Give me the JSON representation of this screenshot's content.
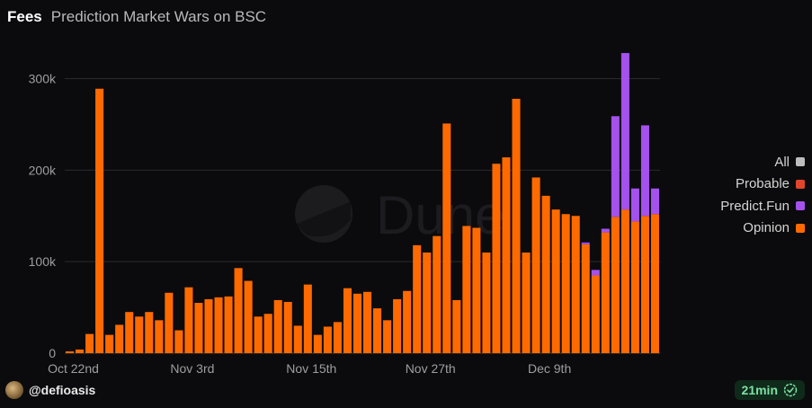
{
  "header": {
    "title": "Fees",
    "subtitle": "Prediction Market Wars on BSC"
  },
  "watermark": {
    "text": "Dune"
  },
  "colors": {
    "background": "#0b0b0d",
    "opinion": "#ff6a00",
    "predict_fun": "#a451ee",
    "probable": "#e2452c",
    "all": "#bdbdbd",
    "grid": "#2a2a2e",
    "axis_text": "#9e9e9e"
  },
  "legend": {
    "items": [
      {
        "label": "All",
        "color": "#bdbdbd"
      },
      {
        "label": "Probable",
        "color": "#e2452c"
      },
      {
        "label": "Predict.Fun",
        "color": "#a451ee"
      },
      {
        "label": "Opinion",
        "color": "#ff6a00"
      }
    ]
  },
  "chart_data": {
    "type": "bar",
    "stacked": true,
    "title": "Fees",
    "subtitle": "Prediction Market Wars on BSC",
    "xlabel": "",
    "ylabel": "",
    "ylim": [
      0,
      330000
    ],
    "yticks": [
      0,
      100000,
      200000,
      300000
    ],
    "ytick_labels": [
      "0",
      "100k",
      "200k",
      "300k"
    ],
    "xtick_labels": [
      {
        "label": "Oct 22nd",
        "index": 0
      },
      {
        "label": "Nov 3rd",
        "index": 12
      },
      {
        "label": "Nov 15th",
        "index": 24
      },
      {
        "label": "Nov 27th",
        "index": 36
      },
      {
        "label": "Dec 9th",
        "index": 48
      }
    ],
    "grid": true,
    "legend_position": "right",
    "series": [
      {
        "name": "Opinion",
        "values": [
          2000,
          4000,
          21000,
          289000,
          20000,
          31000,
          45000,
          40000,
          45000,
          36000,
          66000,
          25000,
          72000,
          55000,
          59000,
          61000,
          62000,
          93000,
          79000,
          40000,
          43000,
          58000,
          56000,
          30000,
          75000,
          20000,
          29000,
          34000,
          71000,
          65000,
          67000,
          49000,
          36000,
          59000,
          68000,
          118000,
          110000,
          128000,
          251000,
          58000,
          139000,
          137000,
          110000,
          207000,
          214000,
          278000,
          110000,
          192000,
          172000,
          157000,
          152000,
          150000,
          119000,
          85000,
          132000,
          149000,
          157000,
          144000,
          150000,
          152000
        ]
      },
      {
        "name": "Predict.Fun",
        "values": [
          0,
          0,
          0,
          0,
          0,
          0,
          0,
          0,
          0,
          0,
          0,
          0,
          0,
          0,
          0,
          0,
          0,
          0,
          0,
          0,
          0,
          0,
          0,
          0,
          0,
          0,
          0,
          0,
          0,
          0,
          0,
          0,
          0,
          0,
          0,
          0,
          0,
          0,
          0,
          0,
          0,
          0,
          0,
          0,
          0,
          0,
          0,
          0,
          0,
          0,
          0,
          0,
          2000,
          6000,
          4000,
          110000,
          171000,
          36000,
          99000,
          28000
        ]
      },
      {
        "name": "Probable",
        "values": [
          0,
          0,
          0,
          0,
          0,
          0,
          0,
          0,
          0,
          0,
          0,
          0,
          0,
          0,
          0,
          0,
          0,
          0,
          0,
          0,
          0,
          0,
          0,
          0,
          0,
          0,
          0,
          0,
          0,
          0,
          0,
          0,
          0,
          0,
          0,
          0,
          0,
          0,
          0,
          0,
          0,
          0,
          0,
          0,
          0,
          0,
          0,
          0,
          0,
          0,
          0,
          0,
          0,
          0,
          0,
          0,
          0,
          0,
          0,
          0
        ]
      },
      {
        "name": "All",
        "values": [
          0,
          0,
          0,
          0,
          0,
          0,
          0,
          0,
          0,
          0,
          0,
          0,
          0,
          0,
          0,
          0,
          0,
          0,
          0,
          0,
          0,
          0,
          0,
          0,
          0,
          0,
          0,
          0,
          0,
          0,
          0,
          0,
          0,
          0,
          0,
          0,
          0,
          0,
          0,
          0,
          0,
          0,
          0,
          0,
          0,
          0,
          0,
          0,
          0,
          0,
          0,
          0,
          0,
          0,
          0,
          0,
          0,
          0,
          0,
          0
        ]
      }
    ]
  },
  "footer": {
    "author": "@defioasis",
    "refresh_label": "21min"
  }
}
